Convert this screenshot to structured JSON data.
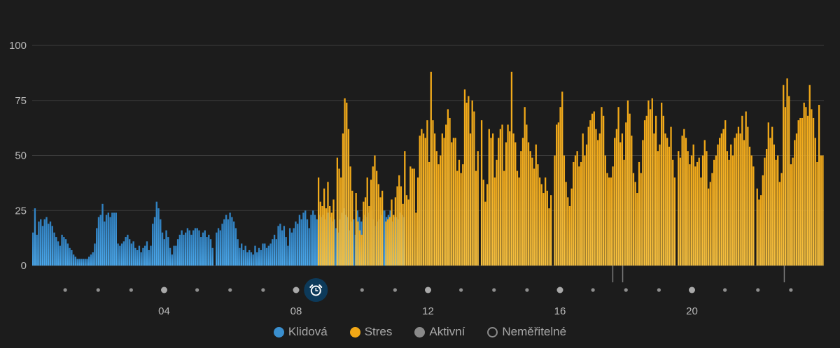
{
  "colors": {
    "background": "#1c1c1c",
    "rest": "#3a8fcf",
    "stress": "#f2a816",
    "active": "#8a8a8a",
    "unmeasurable": "#8a8a8a",
    "grid": "#3b3b3b",
    "tick_text": "#b9b9b9",
    "alarm_bg": "#0d3a5a"
  },
  "chart_data": {
    "type": "bar",
    "title": "",
    "xlabel": "",
    "ylabel": "",
    "ylim": [
      0,
      100
    ],
    "yticks": [
      0,
      25,
      50,
      75,
      100
    ],
    "xlim": [
      0,
      24
    ],
    "xtick_labels": [
      "04",
      "08",
      "12",
      "16",
      "20"
    ],
    "xtick_values": [
      4,
      8,
      12,
      16,
      20
    ],
    "grid": true,
    "legend_position": "bottom",
    "alarm_marker_hour": 8.6,
    "alarm_icon": "alarm-clock-icon",
    "series": [
      {
        "name": "Klidová",
        "x_range": [
          0,
          11.3
        ],
        "values": [
          15,
          26,
          14,
          20,
          21,
          18,
          21,
          22,
          19,
          20,
          18,
          15,
          13,
          11,
          9,
          14,
          13,
          12,
          10,
          8,
          7,
          5,
          4,
          3,
          3,
          3,
          3,
          3,
          3,
          4,
          5,
          6,
          10,
          17,
          22,
          23,
          28,
          20,
          23,
          24,
          22,
          24,
          24,
          24,
          10,
          9,
          10,
          11,
          13,
          14,
          12,
          10,
          11,
          8,
          7,
          9,
          6,
          8,
          9,
          11,
          7,
          9,
          19,
          22,
          29,
          26,
          21,
          15,
          12,
          16,
          13,
          8,
          5,
          9,
          9,
          12,
          14,
          16,
          14,
          15,
          17,
          16,
          14,
          16,
          17,
          17,
          16,
          13,
          15,
          16,
          13,
          14,
          12,
          8,
          0,
          15,
          17,
          16,
          19,
          21,
          23,
          21,
          24,
          22,
          20,
          17,
          12,
          8,
          10,
          7,
          9,
          6,
          7,
          6,
          5,
          9,
          6,
          8,
          7,
          10,
          10,
          8,
          9,
          10,
          12,
          14,
          12,
          18,
          19,
          16,
          18,
          13,
          9,
          17,
          15,
          17,
          20,
          19,
          23,
          21,
          24,
          25,
          21,
          17,
          23,
          25,
          23,
          21,
          23,
          22,
          23,
          21,
          24,
          24,
          22,
          20,
          21,
          17,
          15,
          21,
          24,
          26,
          23,
          22,
          16,
          20,
          21,
          14,
          25,
          22,
          20,
          21,
          23,
          22,
          24,
          25,
          21,
          18,
          20,
          21,
          23,
          25,
          25,
          22,
          23,
          25,
          20,
          22,
          22,
          21,
          24,
          23,
          22
        ]
      },
      {
        "name": "Stres",
        "x_range": [
          8.6,
          24
        ],
        "values": [
          0,
          40,
          29,
          27,
          35,
          26,
          38,
          27,
          24,
          30,
          0,
          49,
          44,
          40,
          60,
          76,
          74,
          62,
          45,
          34,
          0,
          33,
          20,
          16,
          14,
          29,
          31,
          40,
          27,
          39,
          45,
          50,
          43,
          37,
          31,
          34,
          0,
          20,
          21,
          22,
          30,
          23,
          31,
          36,
          41,
          36,
          28,
          52,
          32,
          30,
          45,
          44,
          44,
          24,
          40,
          59,
          62,
          60,
          58,
          66,
          47,
          88,
          66,
          60,
          52,
          46,
          50,
          60,
          58,
          64,
          71,
          67,
          56,
          58,
          58,
          43,
          48,
          42,
          46,
          80,
          74,
          77,
          60,
          75,
          70,
          43,
          52,
          0,
          66,
          39,
          29,
          37,
          62,
          58,
          60,
          40,
          48,
          58,
          62,
          64,
          43,
          56,
          64,
          61,
          88,
          60,
          56,
          43,
          40,
          52,
          58,
          72,
          64,
          56,
          52,
          49,
          44,
          55,
          46,
          40,
          37,
          33,
          40,
          34,
          26,
          32,
          0,
          50,
          64,
          65,
          72,
          79,
          50,
          38,
          31,
          27,
          35,
          47,
          50,
          52,
          45,
          47,
          60,
          50,
          55,
          63,
          66,
          69,
          70,
          62,
          57,
          60,
          72,
          68,
          50,
          42,
          40,
          40,
          45,
          58,
          62,
          72,
          56,
          60,
          48,
          65,
          75,
          69,
          59,
          42,
          38,
          33,
          47,
          42,
          57,
          66,
          68,
          75,
          71,
          76,
          60,
          68,
          52,
          55,
          74,
          68,
          60,
          58,
          54,
          63,
          48,
          40,
          0,
          52,
          49,
          59,
          62,
          58,
          52,
          46,
          50,
          55,
          45,
          47,
          49,
          40,
          50,
          57,
          52,
          35,
          38,
          42,
          48,
          50,
          55,
          58,
          60,
          62,
          66,
          52,
          48,
          55,
          50,
          58,
          60,
          63,
          60,
          68,
          57,
          70,
          63,
          54,
          50,
          45,
          0,
          35,
          30,
          32,
          41,
          49,
          53,
          65,
          58,
          63,
          55,
          48,
          50,
          38,
          42,
          82,
          72,
          85,
          77,
          46,
          49,
          57,
          60,
          66,
          67,
          67,
          74,
          72,
          68,
          82,
          71,
          67,
          58,
          47,
          73,
          50,
          50
        ]
      },
      {
        "name": "Aktivní",
        "dots_hours": [
          1,
          2,
          3,
          4,
          5,
          6,
          7,
          8,
          9,
          10,
          11,
          12,
          13,
          14,
          15,
          16,
          17,
          18,
          19,
          20,
          21,
          22,
          23
        ]
      },
      {
        "name": "Neměřitelné",
        "gap_hours": [
          17.6,
          17.9,
          22.8
        ]
      }
    ]
  },
  "legend": {
    "items": [
      {
        "label": "Klidová",
        "swatch": "filled-blue"
      },
      {
        "label": "Stres",
        "swatch": "filled-orange"
      },
      {
        "label": "Aktivní",
        "swatch": "filled-gray"
      },
      {
        "label": "Neměřitelné",
        "swatch": "outline-gray"
      }
    ]
  }
}
